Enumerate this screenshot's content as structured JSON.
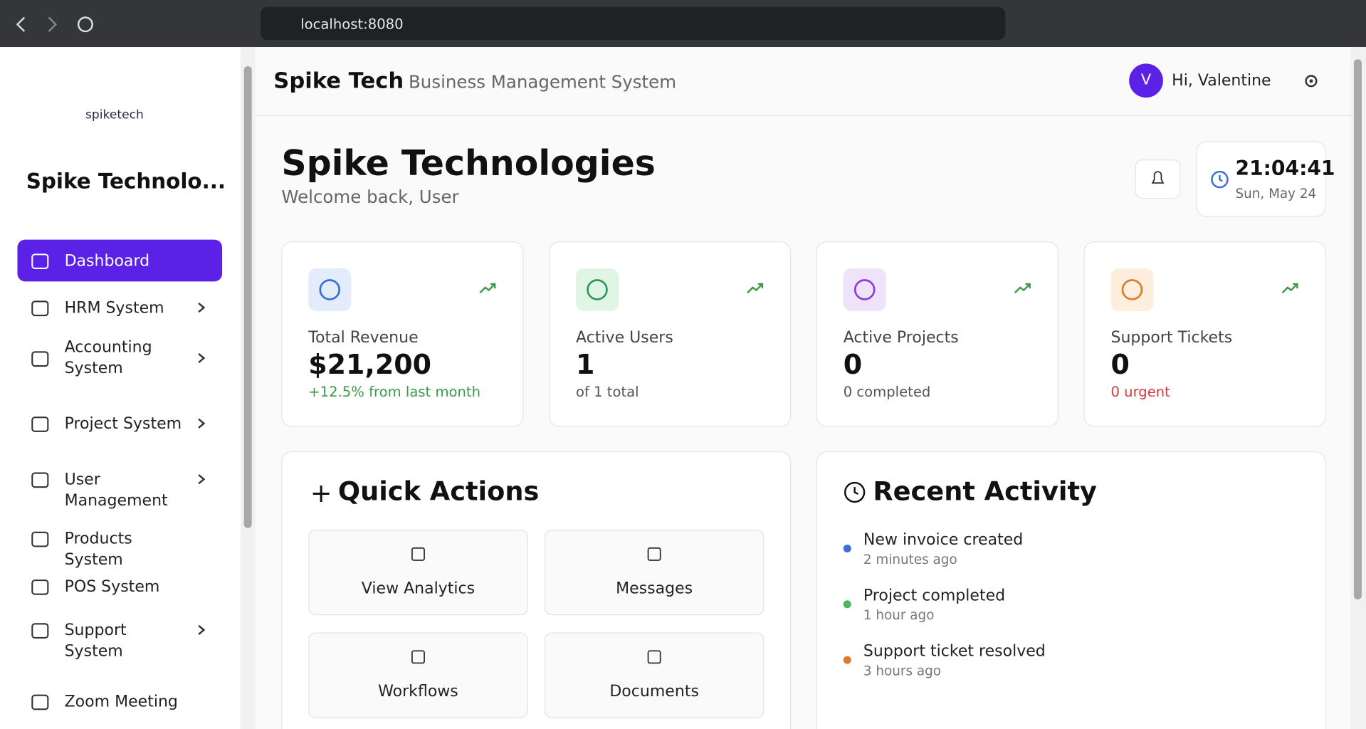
{
  "browser": {
    "url": "localhost:8080"
  },
  "sidebar": {
    "logo": "spiketech",
    "company": "Spike Technolo...",
    "nav": [
      {
        "label": "Dashboard",
        "active": true
      },
      {
        "label": "HRM System",
        "has_submenu": true
      },
      {
        "label": "Accounting System",
        "has_submenu": true
      },
      {
        "label": "Project System",
        "has_submenu": true
      },
      {
        "label": "User Management",
        "has_submenu": true
      },
      {
        "label": "Products System"
      },
      {
        "label": "POS System"
      },
      {
        "label": "Support System",
        "has_submenu": true
      },
      {
        "label": "Zoom Meeting"
      }
    ]
  },
  "header": {
    "brand": "Spike Tech",
    "subtitle": "Business Management System",
    "avatar": "V",
    "greeting": "Hi, Valentine"
  },
  "page": {
    "title": "Spike Technologies",
    "welcome": "Welcome back, User",
    "time": "21:04:41",
    "date": "Sun, May 24"
  },
  "stats": [
    {
      "label": "Total Revenue",
      "value": "$21,200",
      "note": "+12.5% from last month",
      "color": "#3b6fd8",
      "bg": "#e3ecfb",
      "note_color": "#3a9a4a"
    },
    {
      "label": "Active Users",
      "value": "1",
      "note": "of 1 total",
      "color": "#2f9a55",
      "bg": "#e0f5e6",
      "note_color": "#555"
    },
    {
      "label": "Active Projects",
      "value": "0",
      "note": "0 completed",
      "color": "#8a3fd6",
      "bg": "#efe3fb",
      "note_color": "#555"
    },
    {
      "label": "Support Tickets",
      "value": "0",
      "note": "0 urgent",
      "color": "#e07a2e",
      "bg": "#fdeedd",
      "note_color": "#d23c3c"
    }
  ],
  "quick_actions": {
    "title": "Quick Actions",
    "items": [
      "View Analytics",
      "Messages",
      "Workflows",
      "Documents"
    ]
  },
  "activity": {
    "title": "Recent Activity",
    "items": [
      {
        "text": "New invoice created",
        "time": "2 minutes ago",
        "color": "#3b6fd8"
      },
      {
        "text": "Project completed",
        "time": "1 hour ago",
        "color": "#4cb85c"
      },
      {
        "text": "Support ticket resolved",
        "time": "3 hours ago",
        "color": "#e07a2e"
      }
    ]
  }
}
